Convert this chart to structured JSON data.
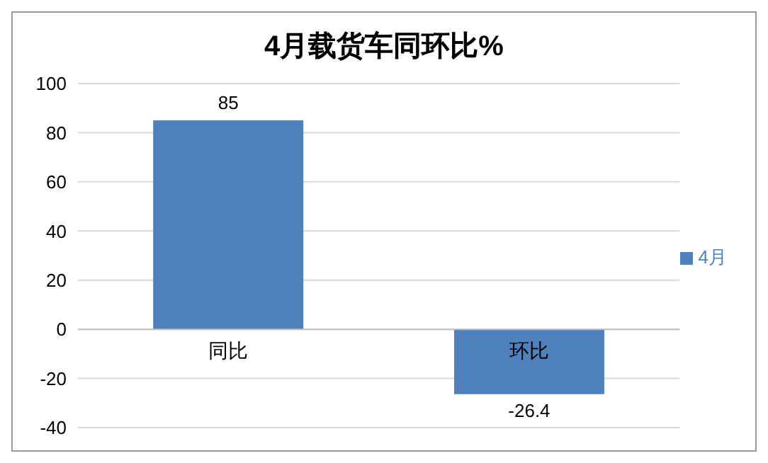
{
  "chart_data": {
    "type": "bar",
    "title": "4月载货车同环比%",
    "categories": [
      "同比",
      "环比"
    ],
    "series": [
      {
        "name": "4月",
        "color": "#4f81bd",
        "values": [
          85,
          -26.4
        ]
      }
    ],
    "ylim": [
      -40,
      100
    ],
    "yticks": [
      -40,
      -20,
      0,
      20,
      40,
      60,
      80,
      100
    ],
    "grid": "y",
    "legend": "right",
    "data_labels": true
  }
}
